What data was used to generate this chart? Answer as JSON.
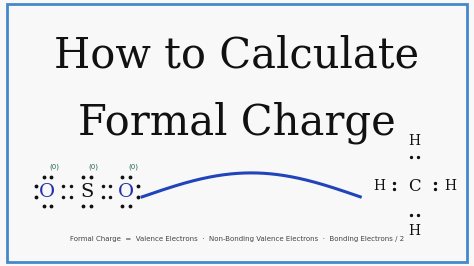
{
  "title_line1": "How to Calculate",
  "title_line2": "Formal Charge",
  "title_color": "#111111",
  "title_fontsize": 30,
  "background_color": "#f8f8f8",
  "border_color": "#4488cc",
  "border_linewidth": 2.0,
  "formula_text": "Formal Charge  =  Valence Electrons  ·  Non-Bonding Valence Electrons  ·  Bonding Electrons / 2",
  "formula_fontsize": 5.0,
  "wave_color": "#2244bb",
  "fig_width": 4.74,
  "fig_height": 2.66,
  "so2_o_color": "#2233aa",
  "so2_s_color": "#111111",
  "dot_color": "#111111"
}
